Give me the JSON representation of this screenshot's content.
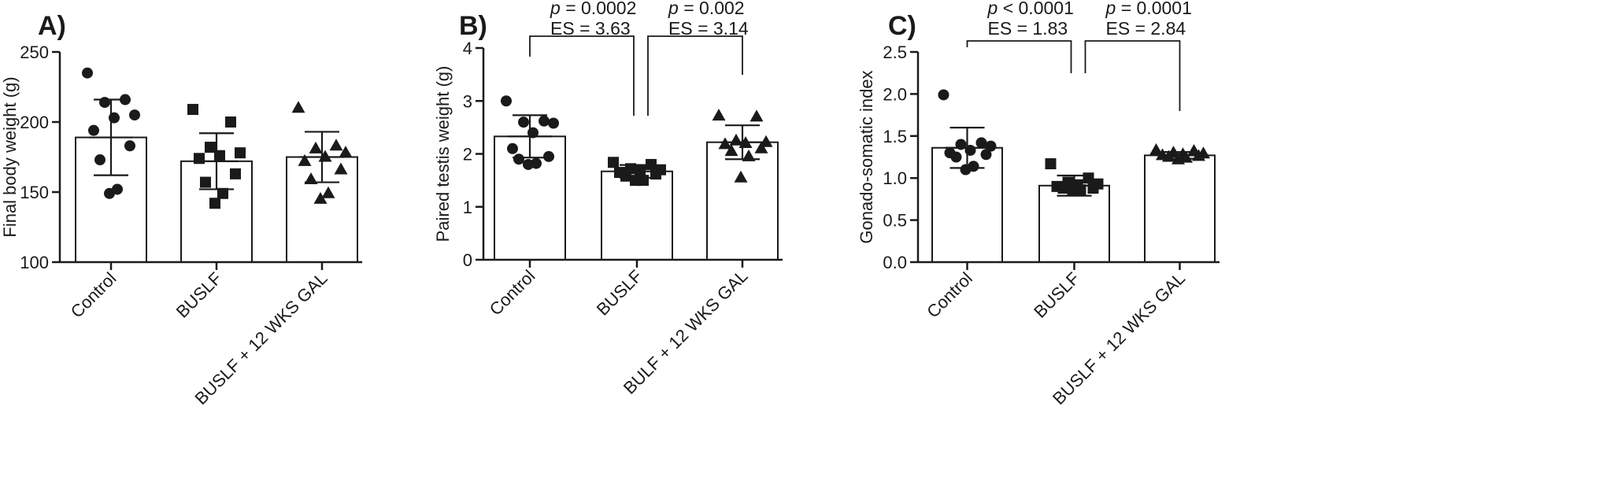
{
  "chart_data": [
    {
      "panel": "A)",
      "type": "bar",
      "ylabel": "Final body weight (g)",
      "ylim": [
        100,
        250
      ],
      "yticks": [
        "100",
        "150",
        "200",
        "250"
      ],
      "categories": [
        "Control",
        "BUSLF",
        "BUSLF + 12 WKS GAL"
      ],
      "markers": [
        "circle",
        "square",
        "triangle"
      ],
      "means": [
        189,
        172,
        175
      ],
      "sd": [
        27,
        20,
        18
      ],
      "points": [
        [
          235,
          216,
          214,
          205,
          203,
          194,
          183,
          173,
          152,
          149
        ],
        [
          209,
          200,
          182,
          178,
          176,
          174,
          163,
          157,
          149,
          142
        ],
        [
          210,
          183,
          181,
          178,
          175,
          172,
          166,
          159,
          149,
          145
        ]
      ],
      "annotations": []
    },
    {
      "panel": "B)",
      "type": "bar",
      "ylabel": "Paired testis weight (g)",
      "ylim": [
        0,
        4
      ],
      "yticks": [
        "0",
        "1",
        "2",
        "3",
        "4"
      ],
      "categories": [
        "Control",
        "BUSLF",
        "BULF + 12 WKS GAL"
      ],
      "markers": [
        "circle",
        "square",
        "triangle"
      ],
      "means": [
        2.33,
        1.67,
        2.22
      ],
      "sd": [
        0.4,
        0.12,
        0.32
      ],
      "points": [
        [
          3.0,
          2.62,
          2.6,
          2.58,
          2.4,
          2.1,
          1.95,
          1.9,
          1.82,
          1.8
        ],
        [
          1.84,
          1.8,
          1.72,
          1.7,
          1.68,
          1.65,
          1.62,
          1.58,
          1.5,
          1.5
        ],
        [
          2.72,
          2.7,
          2.25,
          2.22,
          2.2,
          2.18,
          2.1,
          2.05,
          1.95,
          1.55
        ]
      ],
      "annotations": [
        {
          "p": "= 0.0002",
          "es": "ES = 3.63",
          "from": 0,
          "to": 1
        },
        {
          "p": "= 0.002",
          "es": "ES = 3.14",
          "from": 1,
          "to": 2
        }
      ]
    },
    {
      "panel": "C)",
      "type": "bar",
      "ylabel": "Gonado-somatic index",
      "ylim": [
        0,
        2.5
      ],
      "yticks": [
        "0.0",
        "0.5",
        "1.0",
        "1.5",
        "2.0",
        "2.5"
      ],
      "categories": [
        "Control",
        "BUSLF",
        "BUSLF + 12 WKS GAL"
      ],
      "markers": [
        "circle",
        "square",
        "triangle"
      ],
      "means": [
        1.36,
        0.91,
        1.27
      ],
      "sd": [
        0.24,
        0.12,
        0.04
      ],
      "points": [
        [
          1.99,
          1.42,
          1.4,
          1.38,
          1.33,
          1.3,
          1.28,
          1.25,
          1.14,
          1.1
        ],
        [
          1.17,
          1.0,
          0.95,
          0.93,
          0.92,
          0.9,
          0.88,
          0.88,
          0.86,
          0.85
        ],
        [
          1.33,
          1.32,
          1.3,
          1.29,
          1.28,
          1.27,
          1.26,
          1.25,
          1.24,
          1.22
        ]
      ],
      "annotations": [
        {
          "p": "< 0.0001",
          "es": "ES = 1.83",
          "from": 0,
          "to": 1
        },
        {
          "p": "= 0.0001",
          "es": "ES = 2.84",
          "from": 1,
          "to": 2
        }
      ]
    }
  ]
}
